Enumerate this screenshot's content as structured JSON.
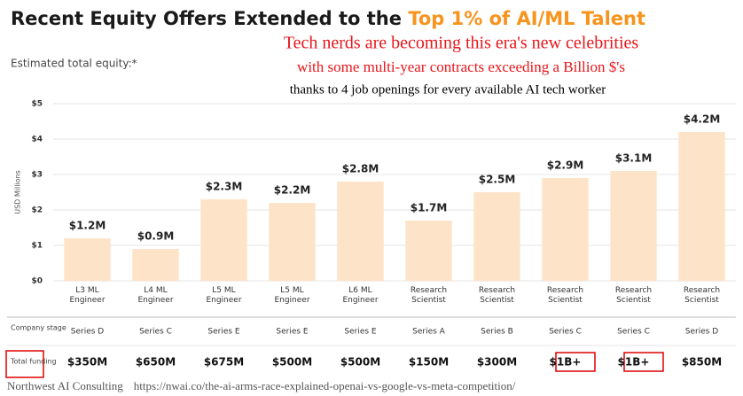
{
  "chart_data": {
    "type": "bar",
    "title": "Recent Equity Offers Extended to the ",
    "title_highlight": "Top 1% of AI/ML Talent",
    "subtitle": "Estimated total equity:*",
    "annotations": [
      "Tech nerds are becoming this era's new celebrities",
      "with some multi-year contracts exceeding a Billion $'s",
      "thanks to 4 job openings for every available AI tech worker"
    ],
    "y_label": "USD Millions",
    "categories": [
      "L3 ML Engineer",
      "L4 ML Engineer",
      "L5 ML Engineer",
      "L5 ML Engineer",
      "L6 ML Engineer",
      "Research Scientist",
      "Research Scientist",
      "Research Scientist",
      "Research Scientist",
      "Research Scientist"
    ],
    "values": [
      1.2,
      0.9,
      2.3,
      2.2,
      2.8,
      1.7,
      2.5,
      2.9,
      3.1,
      4.2
    ],
    "value_labels": [
      "$1.2M",
      "$0.9M",
      "$2.3M",
      "$2.2M",
      "$2.8M",
      "$1.7M",
      "$2.5M",
      "$2.9M",
      "$3.1M",
      "$4.2M"
    ],
    "color": "#fde3c8",
    "ylim": [
      0,
      5
    ],
    "yticks": [
      {
        "value": 0,
        "label": "$0"
      },
      {
        "value": 1,
        "label": "$1"
      },
      {
        "value": 2,
        "label": "$2"
      },
      {
        "value": 3,
        "label": "$3"
      },
      {
        "value": 4,
        "label": "$4"
      },
      {
        "value": 5,
        "label": "$5"
      }
    ],
    "grid": true,
    "company_stage": {
      "label": "Company stage",
      "values": [
        "Series D",
        "Series C",
        "Series E",
        "Series E",
        "Series E",
        "Series A",
        "Series B",
        "Series C",
        "Series C",
        "Series D"
      ]
    },
    "total_funding": {
      "label": "Total funding",
      "values": [
        "$350M",
        "$650M",
        "$675M",
        "$500M",
        "$500M",
        "$150M",
        "$300M",
        "$1B+",
        "$1B+",
        "$850M"
      ]
    }
  },
  "footer": {
    "source": "Northwest AI Consulting",
    "url": "https://nwai.co/the-ai-arms-race-explained-openai-vs-google-vs-meta-competition/"
  }
}
